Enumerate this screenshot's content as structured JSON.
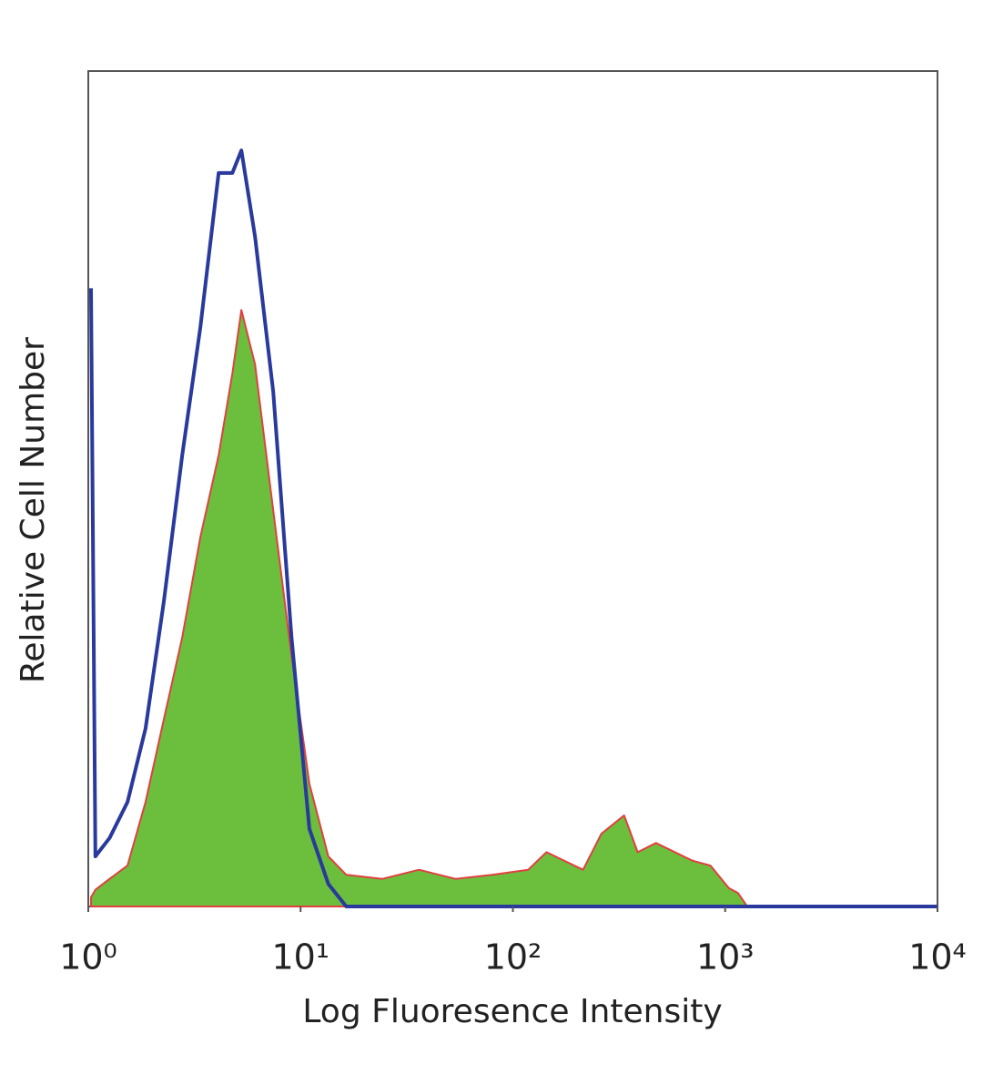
{
  "chart_data": {
    "type": "line",
    "xlabel": "Log Fluoresence Intensity",
    "ylabel": "Relative Cell Number",
    "xscale": "log",
    "xlim": [
      1,
      10000
    ],
    "ylim": [
      0,
      100
    ],
    "xticks": [
      {
        "value": 1,
        "label": "10⁰"
      },
      {
        "value": 10,
        "label": "10¹"
      },
      {
        "value": 100,
        "label": "10²"
      },
      {
        "value": 1000,
        "label": "10³"
      },
      {
        "value": 10000,
        "label": "10⁴"
      }
    ],
    "x": [
      1.03,
      1.08,
      1.26,
      1.53,
      1.86,
      2.27,
      2.77,
      3.37,
      4.11,
      4.77,
      5.26,
      6.1,
      7.43,
      9.06,
      11.0,
      13.5,
      16.4,
      24.3,
      36.1,
      53.7,
      79.7,
      118,
      144,
      214,
      261,
      334,
      387,
      472,
      700,
      853,
      1040,
      1150,
      1270,
      10000
    ],
    "series": [
      {
        "color": "#6cbf3c",
        "edgecolor": "#e04040",
        "fill": true,
        "values": [
          1.1,
          2,
          3.3,
          4.9,
          12.5,
          22.4,
          32.2,
          44.2,
          54,
          63.8,
          71.4,
          64.9,
          47.4,
          30,
          14.7,
          6,
          3.8,
          3.3,
          4.4,
          3.3,
          3.8,
          4.4,
          6.5,
          4.4,
          8.7,
          10.9,
          6.5,
          7.6,
          5.5,
          4.9,
          2.2,
          1.6,
          0,
          0
        ]
      },
      {
        "color": "#2a3a9c",
        "fill": false,
        "values": [
          74,
          6,
          8.2,
          12.5,
          21.3,
          36.5,
          54,
          69.3,
          87.8,
          87.8,
          90.5,
          80.2,
          61.6,
          32.2,
          9.3,
          2.7,
          0,
          0,
          0,
          0,
          0,
          0,
          0,
          0,
          0,
          0,
          0,
          0,
          0,
          0,
          0,
          0,
          0,
          0
        ]
      }
    ]
  }
}
